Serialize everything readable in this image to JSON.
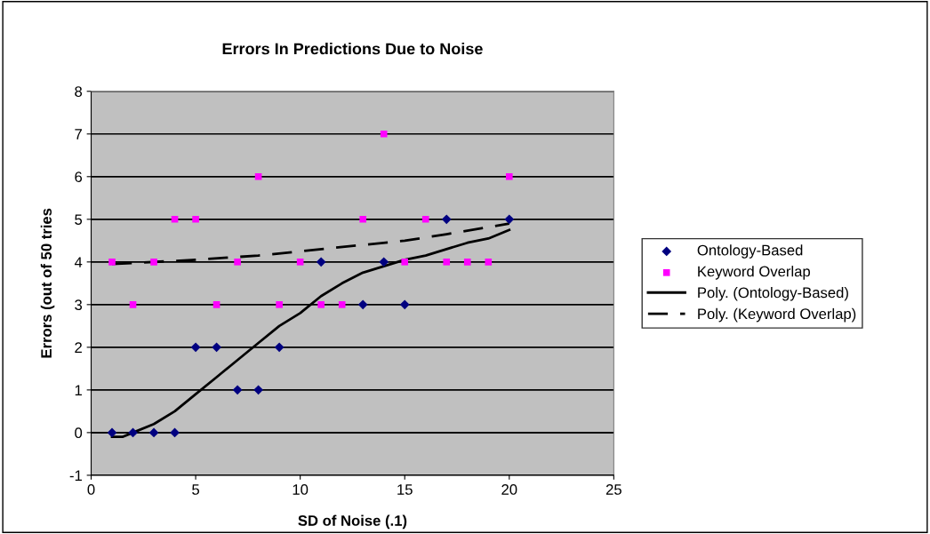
{
  "chart_data": {
    "type": "scatter",
    "title": "Errors In Predictions Due to Noise",
    "xlabel": "SD of Noise (.1)",
    "ylabel": "Errors (out of 50 tries",
    "xlim": [
      0,
      25
    ],
    "xticks": [
      0,
      5,
      10,
      15,
      20,
      25
    ],
    "ylim": [
      -1,
      8
    ],
    "yticks": [
      -1,
      0,
      1,
      2,
      3,
      4,
      5,
      6,
      7,
      8
    ],
    "grid": "y",
    "legend": "right",
    "series": [
      {
        "name": "Ontology-Based",
        "marker": "diamond",
        "color": "#000080",
        "x": [
          1,
          2,
          3,
          4,
          5,
          6,
          7,
          8,
          9,
          11,
          13,
          14,
          15,
          17,
          20
        ],
        "values": [
          0,
          0,
          0,
          0,
          2,
          2,
          1,
          1,
          2,
          4,
          3,
          4,
          3,
          5,
          5
        ]
      },
      {
        "name": "Keyword Overlap",
        "marker": "square",
        "color": "#ff00ff",
        "x": [
          1,
          2,
          3,
          4,
          5,
          6,
          7,
          8,
          9,
          10,
          11,
          12,
          13,
          14,
          15,
          16,
          17,
          18,
          19,
          20
        ],
        "values": [
          4,
          3,
          4,
          5,
          5,
          3,
          4,
          6,
          3,
          4,
          3,
          3,
          5,
          7,
          4,
          5,
          4,
          4,
          4,
          6
        ]
      },
      {
        "name": "Poly. (Ontology-Based)",
        "type": "line",
        "line_style": "solid",
        "color": "#000000",
        "x": [
          1,
          1.5,
          2,
          3,
          4,
          5,
          6,
          7,
          8,
          9,
          10,
          11,
          12,
          13,
          14,
          15,
          16,
          17,
          18,
          19,
          20
        ],
        "values": [
          -0.1,
          -0.1,
          0,
          0.2,
          0.5,
          0.9,
          1.3,
          1.7,
          2.1,
          2.5,
          2.8,
          3.2,
          3.5,
          3.75,
          3.9,
          4.05,
          4.15,
          4.3,
          4.45,
          4.55,
          4.75
        ]
      },
      {
        "name": "Poly. (Keyword Overlap)",
        "type": "line",
        "line_style": "dashed",
        "color": "#000000",
        "x": [
          1,
          5,
          8,
          10,
          13,
          15,
          17,
          20
        ],
        "values": [
          3.95,
          4.05,
          4.15,
          4.25,
          4.4,
          4.5,
          4.65,
          4.9
        ]
      }
    ]
  }
}
